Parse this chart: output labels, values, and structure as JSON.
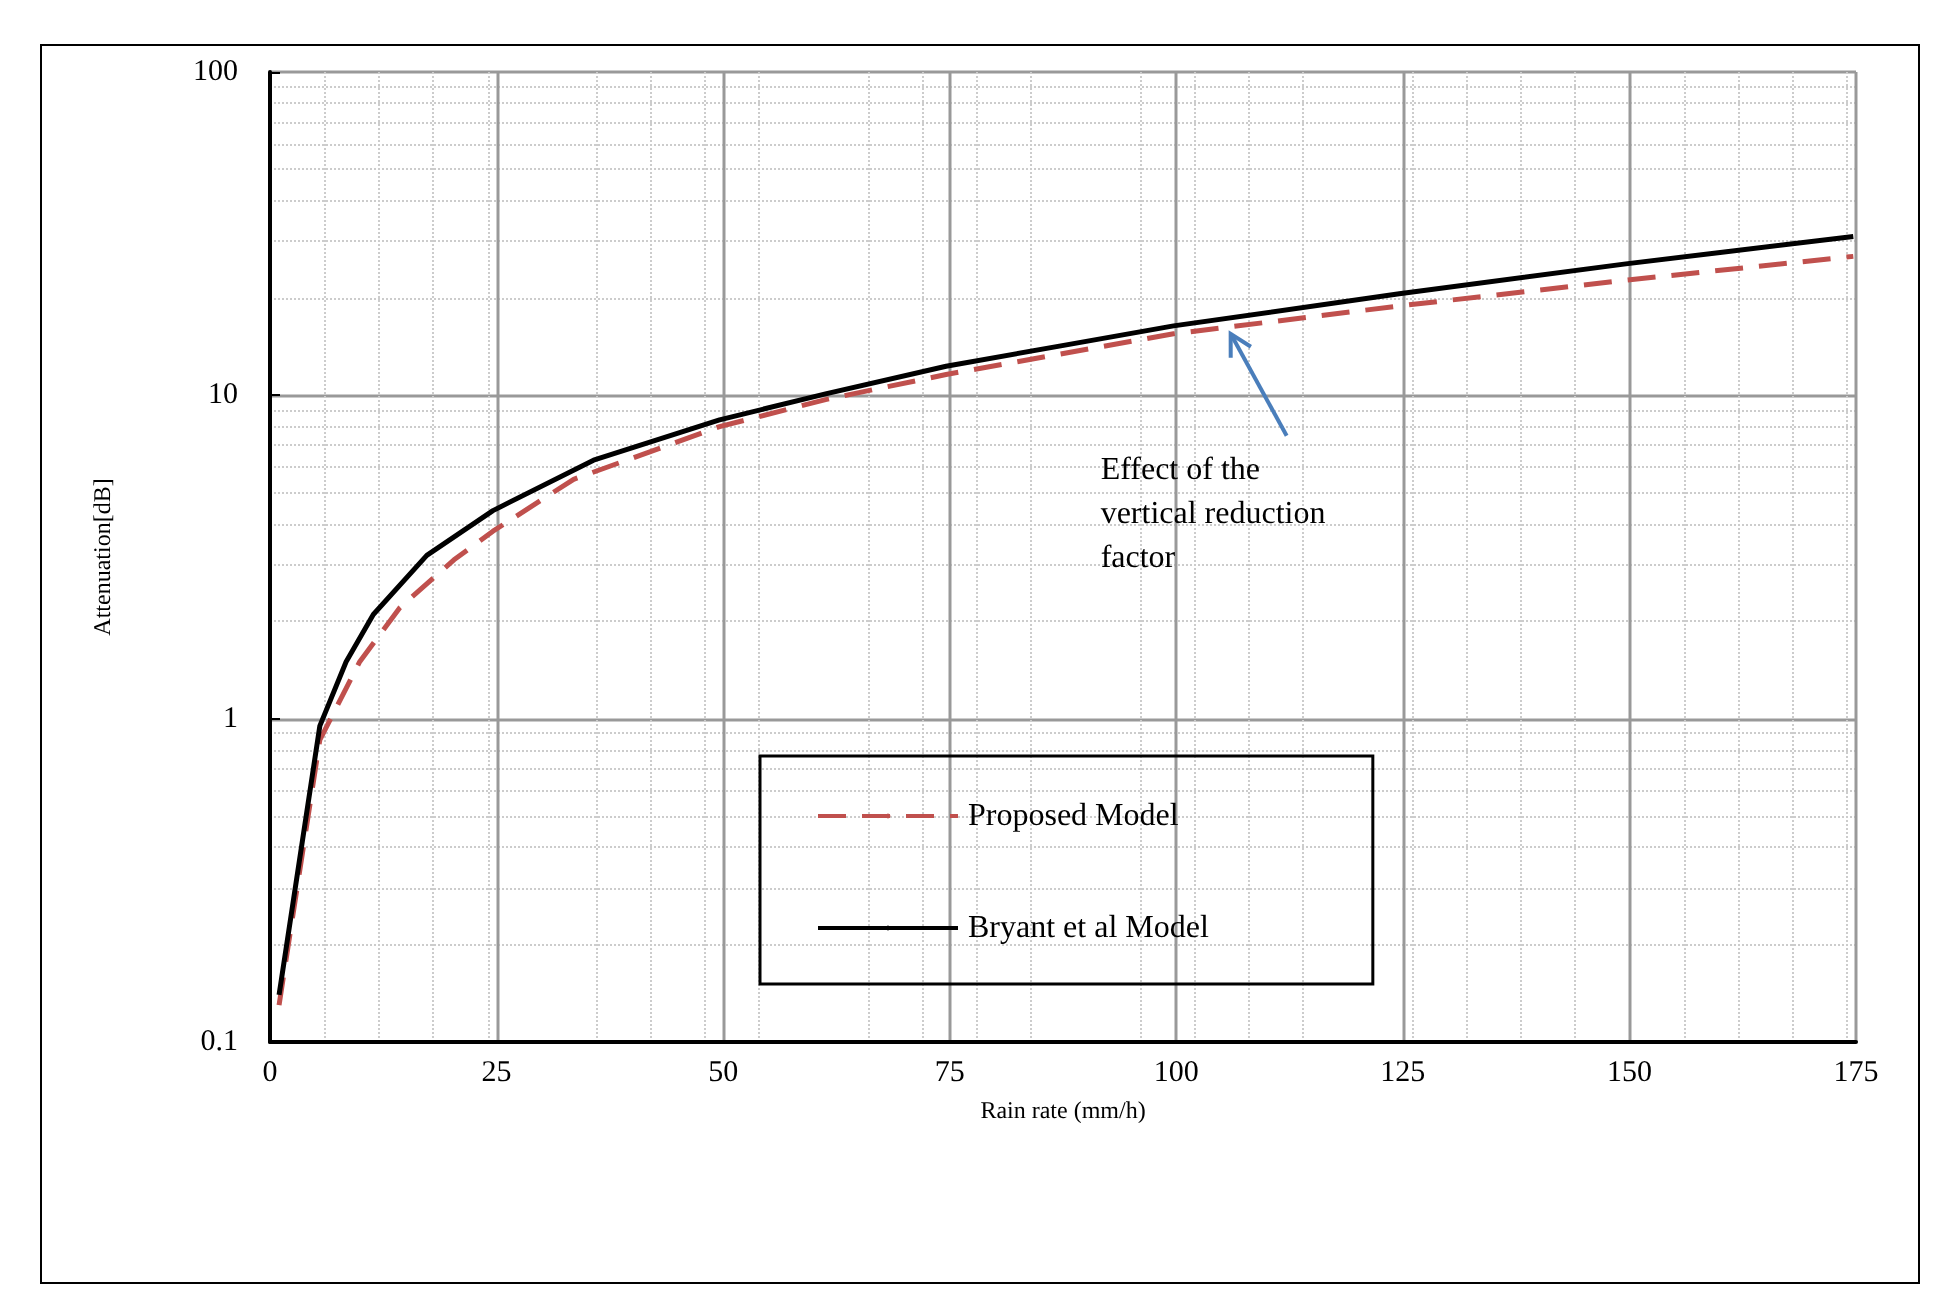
{
  "chart_data": {
    "type": "line",
    "xlabel": "Rain rate (mm/h)",
    "ylabel": "Attenuation[dB]",
    "xlim": [
      0,
      175
    ],
    "xticks": [
      0,
      25,
      50,
      75,
      100,
      125,
      150,
      175
    ],
    "ylim": [
      0.1,
      100
    ],
    "yticks": [
      0.1,
      1,
      10,
      100
    ],
    "log": "y",
    "grid": true,
    "legend": "bottom",
    "marker": "none",
    "annotations": [
      {
        "text": "Effect of the\nvertical reduction\nfactor",
        "x": 106,
        "y": 15.5
      }
    ],
    "series": [
      {
        "name": "Proposed Model",
        "color": "#c0504d",
        "line_style": "dashed",
        "x": [
          1,
          5.5,
          9.9,
          14.3,
          20.3,
          24.6,
          33.5,
          49.6,
          61.3,
          74.6,
          99.7,
          124.6,
          149.6,
          174.7
        ],
        "values": [
          0.13,
          0.86,
          1.5,
          2.2,
          3.1,
          3.8,
          5.5,
          8.0,
          9.7,
          11.6,
          15.5,
          18.9,
          22.7,
          26.9
        ]
      },
      {
        "name": "Bryant et al Model",
        "color": "#000000",
        "line_style": "solid",
        "x": [
          1,
          5.5,
          8.4,
          11.4,
          17.3,
          24.6,
          35.7,
          49.6,
          61.3,
          74.6,
          87.1,
          99.7,
          124.6,
          149.6,
          174.7
        ],
        "values": [
          0.14,
          0.95,
          1.5,
          2.1,
          3.2,
          4.4,
          6.3,
          8.4,
          10.1,
          12.3,
          14.2,
          16.4,
          20.6,
          25.5,
          31
        ]
      }
    ]
  }
}
